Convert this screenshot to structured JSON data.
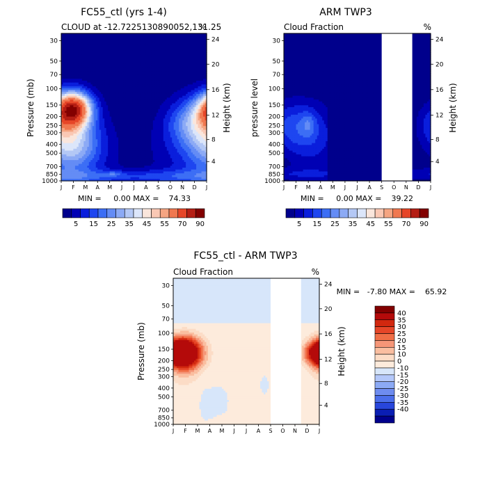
{
  "chart_data": [
    {
      "type": "contour",
      "title": "FC55_ctl (yrs 1-4)",
      "subtitle_left": "CLOUD at -12.7225130890052,131.25",
      "subtitle_right": "%",
      "ylabel": "Pressure (mb)",
      "ylabel_right": "Height (km)",
      "months": [
        "J",
        "F",
        "M",
        "A",
        "M",
        "J",
        "J",
        "A",
        "S",
        "O",
        "N",
        "D",
        "J"
      ],
      "pressure_ticks": [
        "30",
        "50",
        "70",
        "100",
        "150",
        "200",
        "250",
        "300",
        "400",
        "500",
        "700",
        "850",
        "1000"
      ],
      "pressure_values": [
        30,
        50,
        70,
        100,
        150,
        200,
        250,
        300,
        400,
        500,
        700,
        850,
        1000
      ],
      "height_ticks": [
        "24",
        "20",
        "16",
        "12",
        "8",
        "4"
      ],
      "stats": "MIN =     0.00 MAX =    74.33",
      "colorbar_labels": [
        "5",
        "15",
        "25",
        "35",
        "45",
        "55",
        "70",
        "90"
      ],
      "missing_months": []
    },
    {
      "type": "contour",
      "title": "ARM TWP3",
      "subtitle_left": "Cloud Fraction",
      "subtitle_right": "%",
      "ylabel": "pressure level",
      "ylabel_right": "Height (km)",
      "months": [
        "J",
        "F",
        "M",
        "A",
        "M",
        "J",
        "J",
        "A",
        "S",
        "O",
        "N",
        "D",
        "J"
      ],
      "pressure_ticks": [
        "30",
        "50",
        "70",
        "100",
        "150",
        "200",
        "250",
        "300",
        "400",
        "500",
        "700",
        "850",
        "1000"
      ],
      "pressure_values": [
        30,
        50,
        70,
        100,
        150,
        200,
        250,
        300,
        400,
        500,
        700,
        850,
        1000
      ],
      "height_ticks": [
        "24",
        "20",
        "16",
        "12",
        "8",
        "4"
      ],
      "stats": "MIN =     0.00 MAX =    39.22",
      "colorbar_labels": [
        "5",
        "15",
        "25",
        "35",
        "45",
        "55",
        "70",
        "90"
      ],
      "missing_months": [
        "S",
        "O",
        "N"
      ]
    },
    {
      "type": "contour",
      "title": "FC55_ctl - ARM TWP3",
      "subtitle_left": "Cloud Fraction",
      "subtitle_right": "%",
      "ylabel": "Pressure (mb)",
      "ylabel_right": "Height (km)",
      "months": [
        "J",
        "F",
        "M",
        "A",
        "M",
        "J",
        "J",
        "A",
        "S",
        "O",
        "N",
        "D",
        "J"
      ],
      "pressure_ticks": [
        "30",
        "50",
        "70",
        "100",
        "150",
        "200",
        "250",
        "300",
        "400",
        "500",
        "700",
        "850",
        "1000"
      ],
      "pressure_values": [
        30,
        50,
        70,
        100,
        150,
        200,
        250,
        300,
        400,
        500,
        700,
        850,
        1000
      ],
      "height_ticks": [
        "24",
        "20",
        "16",
        "12",
        "8",
        "4"
      ],
      "stats": "MIN =   -7.80 MAX =    65.92",
      "colorbar_labels": [
        "40",
        "35",
        "30",
        "25",
        "20",
        "15",
        "10",
        "0",
        "-10",
        "-15",
        "-20",
        "-25",
        "-30",
        "-35",
        "-40"
      ],
      "missing_months": [
        "S",
        "O",
        "N"
      ]
    }
  ],
  "colors": {
    "seq": [
      "#00008c",
      "#0000b4",
      "#0a1edc",
      "#1e46f0",
      "#3c6ef5",
      "#648cf5",
      "#8caaf5",
      "#b4c8f5",
      "#dce6fa",
      "#fae6dc",
      "#fac8b4",
      "#f5a582",
      "#f07850",
      "#e64628",
      "#b41e14",
      "#820000"
    ],
    "diff": [
      "#820000",
      "#b40a0a",
      "#d2280f",
      "#e64628",
      "#f06e46",
      "#f59678",
      "#fabea0",
      "#fcdcc6",
      "#fdebdc",
      "#d7e6fa",
      "#b4c8fa",
      "#8caaf5",
      "#6e8cf0",
      "#4b6eeb",
      "#2846dc",
      "#0a1eb4",
      "#00008c"
    ]
  }
}
